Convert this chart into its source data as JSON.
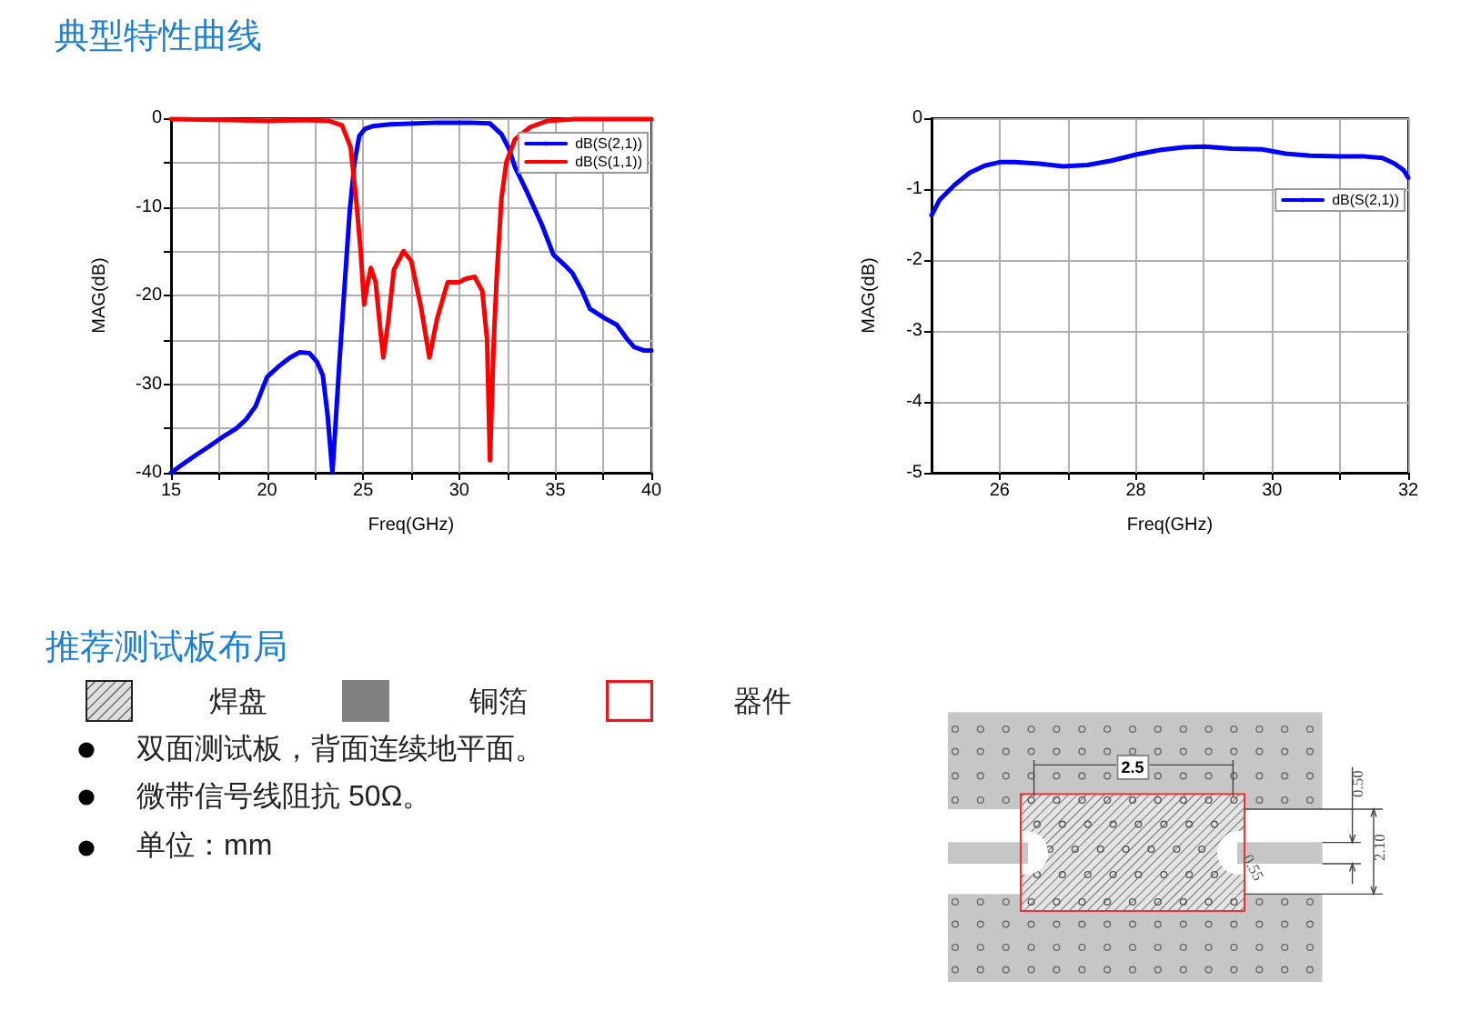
{
  "chart_data": [
    {
      "type": "line",
      "title": "典型特性曲线",
      "xlabel": "Freq(GHz)",
      "ylabel": "MAG(dB)",
      "xlim": [
        15,
        40
      ],
      "ylim": [
        -40,
        0
      ],
      "xticks": [
        15,
        {
          "value": 17.5,
          "label": null
        },
        20,
        {
          "value": 22.5,
          "label": null
        },
        25,
        {
          "value": 27.5,
          "label": null
        },
        30,
        {
          "value": 32.5,
          "label": null
        },
        35,
        {
          "value": 37.5,
          "label": null
        },
        40
      ],
      "yticks": [
        -40,
        {
          "value": -35,
          "label": null
        },
        -30,
        {
          "value": -25,
          "label": null
        },
        -20,
        {
          "value": -15,
          "label": null
        },
        -10,
        {
          "value": -5,
          "label": null
        },
        0
      ],
      "grid": true,
      "legend": "top right",
      "marker": "none",
      "line_style": "solid",
      "series": [
        {
          "name": "dB(S(2,1))",
          "color": "#0000ff",
          "x": [
            15,
            15.5,
            16.3,
            17,
            17.8,
            18.4,
            18.9,
            19.4,
            20,
            20.6,
            21.2,
            21.7,
            22.2,
            22.6,
            22.9,
            23.15,
            23.4,
            23.55,
            23.75,
            24,
            24.3,
            24.55,
            24.8,
            25.1,
            25.5,
            26.4,
            28.9,
            30.5,
            31.6,
            32.2,
            32.6,
            32.9,
            33.5,
            34.3,
            34.9,
            35.5,
            35.9,
            36.4,
            36.8,
            37.6,
            38.2,
            38.7,
            39.1,
            39.6,
            40
          ],
          "values": [
            -40,
            -39.2,
            -38,
            -37,
            -35.8,
            -35,
            -34,
            -32.5,
            -29.2,
            -28,
            -27,
            -26.4,
            -26.5,
            -27.5,
            -29,
            -33.5,
            -40,
            -35,
            -28,
            -20,
            -10.5,
            -5,
            -2,
            -1.2,
            -0.9,
            -0.7,
            -0.5,
            -0.5,
            -0.6,
            -1.8,
            -3.5,
            -5.5,
            -8.2,
            -12,
            -15.4,
            -16.6,
            -17.5,
            -19.5,
            -21.5,
            -22.6,
            -23.3,
            -24.8,
            -25.8,
            -26.2,
            -26.2
          ]
        },
        {
          "name": "dB(S(1,1))",
          "color": "#ff0000",
          "x": [
            15,
            18,
            20,
            22,
            23.2,
            23.9,
            24.35,
            24.65,
            24.87,
            25.05,
            25.2,
            25.4,
            25.65,
            25.9,
            26.05,
            26.3,
            26.6,
            27.1,
            27.5,
            28,
            28.45,
            28.85,
            29.4,
            30,
            30.35,
            30.8,
            31.2,
            31.45,
            31.6,
            31.8,
            31.95,
            32.2,
            32.45,
            32.9,
            33.7,
            34.6,
            36,
            40
          ],
          "values": [
            -0.1,
            -0.2,
            -0.3,
            -0.2,
            -0.3,
            -0.8,
            -3.3,
            -9.5,
            -15,
            -21,
            -19,
            -16.9,
            -18.5,
            -24,
            -27,
            -23,
            -17.1,
            -15,
            -16.1,
            -21.2,
            -27,
            -22.6,
            -18.5,
            -18.5,
            -18.1,
            -17.9,
            -19.5,
            -25,
            -38.6,
            -25,
            -18,
            -9,
            -5,
            -2.4,
            -1,
            -0.3,
            -0.1,
            -0.1
          ]
        }
      ]
    },
    {
      "type": "line",
      "xlabel": "Freq(GHz)",
      "ylabel": "MAG(dB)",
      "xlim": [
        25,
        32
      ],
      "ylim": [
        -5,
        0
      ],
      "xticks": [
        26,
        {
          "value": 27,
          "label": null
        },
        28,
        {
          "value": 29,
          "label": null
        },
        30,
        {
          "value": 31,
          "label": null
        },
        32
      ],
      "yticks": [
        -5,
        -4,
        -3,
        -2,
        -1,
        0
      ],
      "grid": true,
      "legend": "right",
      "marker": "none",
      "line_style": "solid",
      "series": [
        {
          "name": "dB(S(2,1))",
          "color": "#0000ff",
          "x": [
            25,
            25.12,
            25.34,
            25.56,
            25.78,
            26,
            26.22,
            26.58,
            26.93,
            27.29,
            27.64,
            28.02,
            28.35,
            28.7,
            29.01,
            29.41,
            29.85,
            30.2,
            30.56,
            31,
            31.36,
            31.62,
            31.8,
            31.93,
            32
          ],
          "values": [
            -1.37,
            -1.15,
            -0.94,
            -0.77,
            -0.67,
            -0.62,
            -0.62,
            -0.64,
            -0.68,
            -0.66,
            -0.6,
            -0.51,
            -0.45,
            -0.41,
            -0.4,
            -0.43,
            -0.44,
            -0.5,
            -0.53,
            -0.54,
            -0.54,
            -0.56,
            -0.64,
            -0.73,
            -0.84
          ]
        }
      ]
    },
    {
      "type": "other",
      "title": "推荐测试板布局",
      "annotations": [
        "焊盘",
        "铜箔",
        "器件",
        "双面测试板，背面连续地平面。",
        "微带信号线阻抗 50Ω。",
        "单位：mm",
        "2.5",
        "0.50",
        "2.10",
        "0.55"
      ]
    }
  ]
}
